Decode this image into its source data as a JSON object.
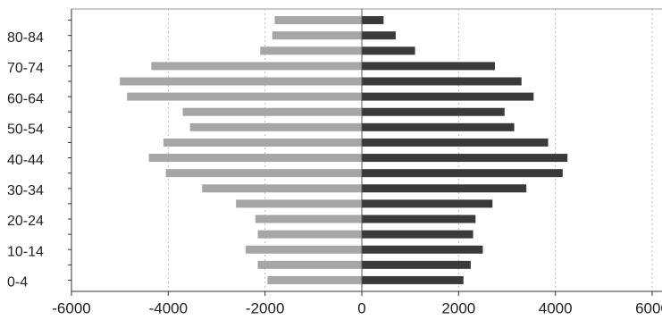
{
  "chart_data": {
    "type": "bar",
    "orientation": "horizontal",
    "categories": [
      "0-4",
      null,
      "10-14",
      null,
      "20-24",
      null,
      "30-34",
      null,
      "40-44",
      null,
      "50-54",
      null,
      "60-64",
      null,
      "70-74",
      null,
      "80-84",
      null
    ],
    "series": [
      {
        "color": "#a6a6a6",
        "values": [
          -1950,
          -2150,
          -2400,
          -2150,
          -2200,
          -2600,
          -3300,
          -4050,
          -4400,
          -4100,
          -3550,
          -3700,
          -4850,
          -5000,
          -4350,
          -2100,
          -1850,
          -1800
        ]
      },
      {
        "color": "#3a3a3a",
        "values": [
          2100,
          2250,
          2500,
          2300,
          2350,
          2700,
          3400,
          4150,
          4250,
          3850,
          3150,
          2950,
          3550,
          3300,
          2750,
          1100,
          700,
          450
        ]
      }
    ],
    "xlim": [
      -6000,
      6000
    ],
    "xticks": [
      -6000,
      -4000,
      -2000,
      0,
      2000,
      4000,
      6000
    ],
    "grid": true
  }
}
